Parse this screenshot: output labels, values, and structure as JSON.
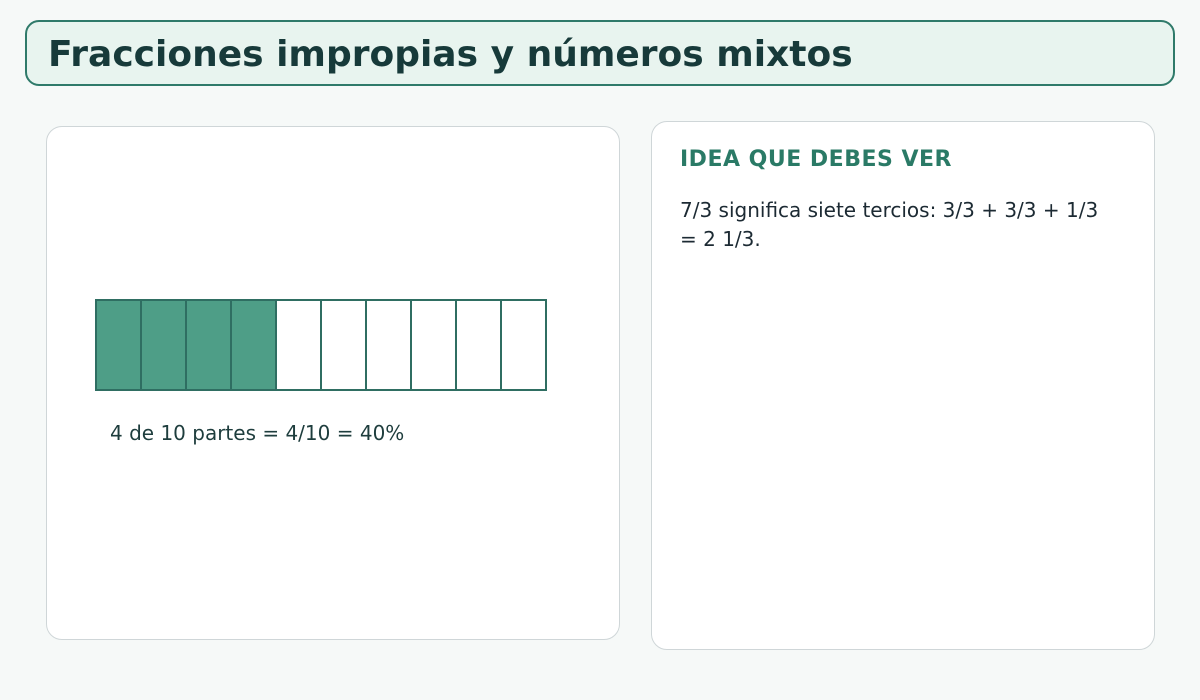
{
  "header": {
    "title": "Fracciones impropias y números mixtos"
  },
  "fraction_bar": {
    "filled": 4,
    "total": 10,
    "caption": "4 de 10 partes = 4/10 = 40%"
  },
  "idea": {
    "heading": "IDEA QUE DEBES VER",
    "text": "7/3 significa siete tercios: 3/3 + 3/3 + 1/3 = 2 1/3."
  }
}
